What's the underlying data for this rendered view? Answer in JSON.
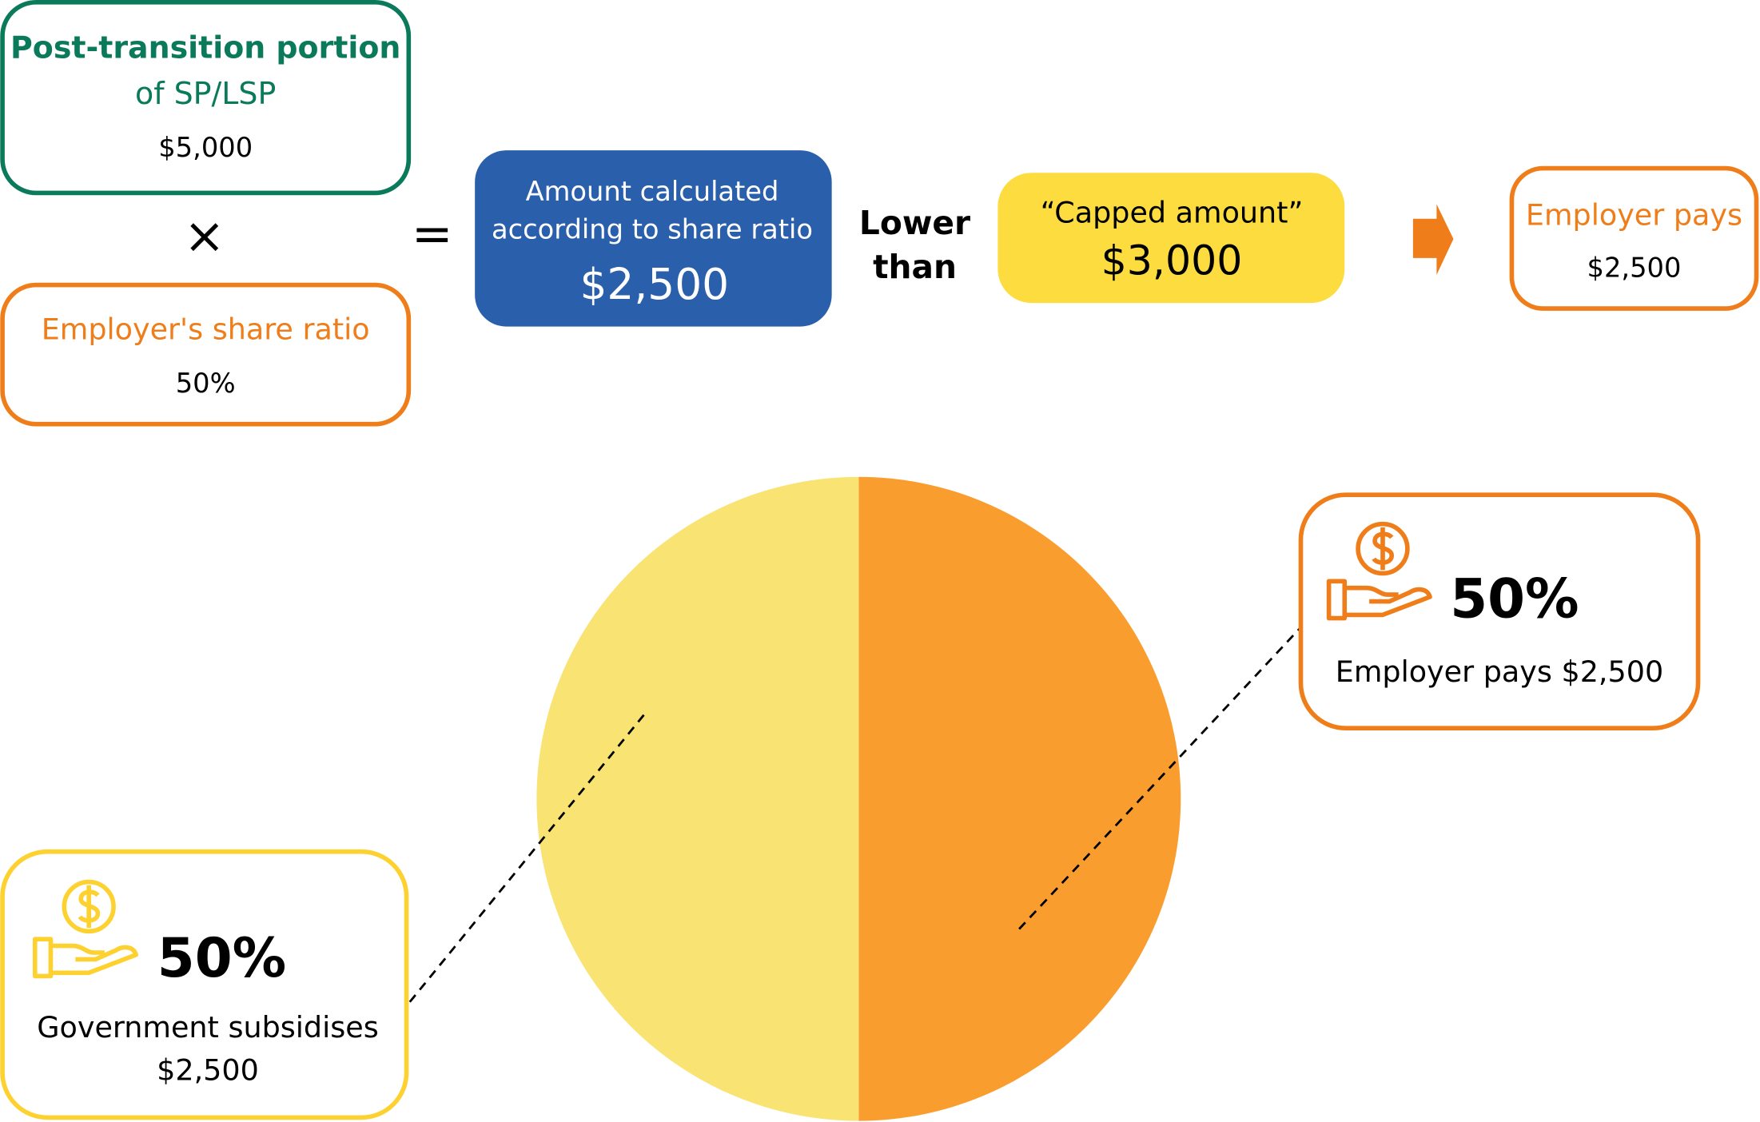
{
  "formula": {
    "portion": {
      "title": "Post-transition portion",
      "subtitle": "of SP/LSP",
      "value": "$5,000"
    },
    "times": "×",
    "ratio": {
      "title": "Employer's share ratio",
      "value": "50%"
    },
    "equals": "=",
    "calculated": {
      "title_lines": [
        "Amount calculated",
        "according to share ratio"
      ],
      "value": "$2,500"
    },
    "comparison": [
      "Lower",
      "than"
    ],
    "capped": {
      "title": "“Capped amount”",
      "value": "$3,000"
    },
    "result": {
      "title": "Employer pays",
      "value": "$2,500"
    }
  },
  "pie": {
    "values": [
      50,
      50
    ],
    "value_labels": [
      "50%",
      "50%"
    ],
    "colors": [
      "#fa9d2f",
      "#f9e373"
    ],
    "captions": [
      [
        "Employer pays $2,500"
      ],
      [
        "Government subsidises",
        "$2,500"
      ]
    ]
  }
}
